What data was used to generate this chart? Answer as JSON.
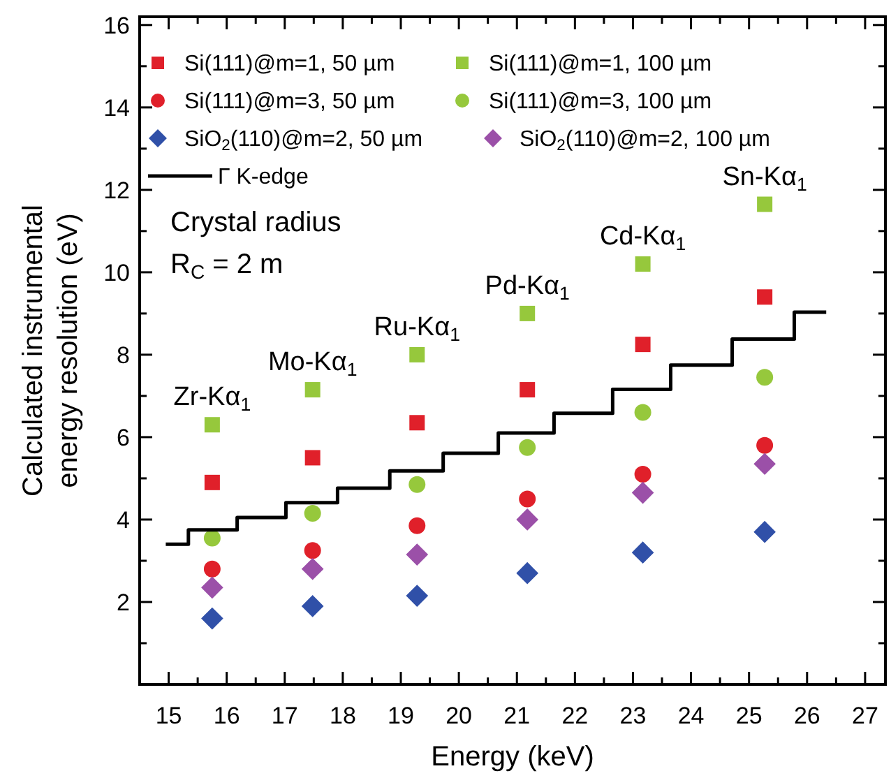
{
  "chart_data": {
    "type": "scatter",
    "xlabel": "Energy (keV)",
    "ylabel": "Calculated instrumental energy resolution (eV)",
    "xlim": [
      14.5,
      27.35
    ],
    "ylim": [
      0,
      16.2
    ],
    "xticks": [
      15,
      {
        "value": 15.5,
        "label": null
      },
      16,
      {
        "value": 16.5,
        "label": null
      },
      17,
      {
        "value": 17.5,
        "label": null
      },
      18,
      {
        "value": 18.5,
        "label": null
      },
      19,
      {
        "value": 19.5,
        "label": null
      },
      20,
      {
        "value": 20.5,
        "label": null
      },
      21,
      {
        "value": 21.5,
        "label": null
      },
      22,
      {
        "value": 22.5,
        "label": null
      },
      23,
      {
        "value": 23.5,
        "label": null
      },
      24,
      {
        "value": 24.5,
        "label": null
      },
      25,
      {
        "value": 25.5,
        "label": null
      },
      26,
      {
        "value": 26.5,
        "label": null
      },
      27
    ],
    "yticks": [
      {
        "value": 1,
        "label": null
      },
      2,
      {
        "value": 3,
        "label": null
      },
      4,
      {
        "value": 5,
        "label": null
      },
      6,
      {
        "value": 7,
        "label": null
      },
      8,
      {
        "value": 9,
        "label": null
      },
      10,
      {
        "value": 11,
        "label": null
      },
      12,
      {
        "value": 13,
        "label": null
      },
      14,
      {
        "value": 15,
        "label": null
      },
      16
    ],
    "grid": false,
    "legend": "top left",
    "x": [
      15.75,
      17.48,
      19.28,
      21.18,
      23.17,
      25.27
    ],
    "series": [
      {
        "name": "Si(111)@m=1, 50 µm",
        "color": "#e0202a",
        "marker": "square",
        "values": [
          4.9,
          5.5,
          6.35,
          7.15,
          8.25,
          9.4
        ]
      },
      {
        "name": "Si(111)@m=1, 100 µm",
        "color": "#96c83c",
        "marker": "square",
        "values": [
          6.3,
          7.15,
          8.0,
          9.0,
          10.2,
          11.65
        ]
      },
      {
        "name": "Si(111)@m=3, 50 µm",
        "color": "#e0202a",
        "marker": "circle",
        "values": [
          2.8,
          3.25,
          3.85,
          4.5,
          5.1,
          5.8
        ]
      },
      {
        "name": "Si(111)@m=3, 100 µm",
        "color": "#96c83c",
        "marker": "circle",
        "values": [
          3.55,
          4.15,
          4.85,
          5.75,
          6.6,
          7.45
        ]
      },
      {
        "name": "SiO$_{2}$(110)@m=2, 50 µm",
        "color": "#3050a8",
        "marker": "diamond",
        "values": [
          1.6,
          1.9,
          2.15,
          2.7,
          3.2,
          3.7
        ]
      },
      {
        "name": "SiO$_{2}$(110)@m=2, 100 µm",
        "color": "#9b50a8",
        "marker": "diamond",
        "values": [
          2.35,
          2.8,
          3.15,
          4.0,
          4.65,
          5.35
        ]
      },
      {
        "name": "Γ K-edge",
        "type": "step",
        "color": "#000000",
        "marker": "none",
        "line_style": "solid",
        "x": [
          14.95,
          15.34,
          16.18,
          17.02,
          17.91,
          18.81,
          19.73,
          20.68,
          21.64,
          22.65,
          23.65,
          24.71,
          25.78,
          26.33
        ],
        "values": [
          3.4,
          3.75,
          4.05,
          4.41,
          4.76,
          5.18,
          5.61,
          6.1,
          6.58,
          7.16,
          7.75,
          8.38,
          9.03,
          9.03
        ]
      }
    ],
    "annotations": [
      "Crystal radius",
      "R$_{C}$ = 2 m",
      {
        "text": "Zr-Kα$_{1}$",
        "x": 15.75,
        "y": 6.3
      },
      {
        "text": "Mo-Kα$_{1}$",
        "x": 17.48,
        "y": 7.15
      },
      {
        "text": "Ru-Kα$_{1}$",
        "x": 19.28,
        "y": 8.0
      },
      {
        "text": "Pd-Kα$_{1}$",
        "x": 21.18,
        "y": 9.0
      },
      {
        "text": "Cd-Kα$_{1}$",
        "x": 23.17,
        "y": 10.2
      },
      {
        "text": "Sn-Kα$_{1}$",
        "x": 25.27,
        "y": 11.65
      }
    ]
  }
}
